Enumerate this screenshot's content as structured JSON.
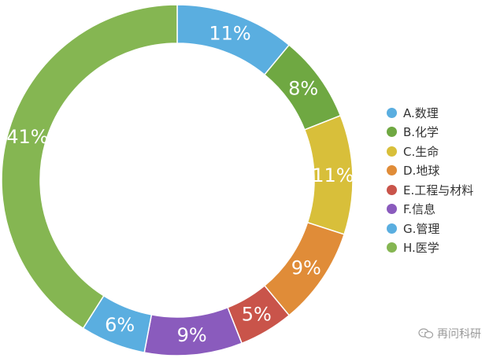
{
  "chart_data": {
    "type": "pie",
    "title": "",
    "start_angle_deg": 0,
    "direction": "clockwise",
    "legend_position": "right",
    "slices": [
      {
        "label": "A.数理",
        "value": 11,
        "value_label": "11%",
        "color": "#5aaee0"
      },
      {
        "label": "B.化学",
        "value": 8,
        "value_label": "8%",
        "color": "#6fa842"
      },
      {
        "label": "C.生命",
        "value": 11,
        "value_label": "11%",
        "color": "#d8bf3a"
      },
      {
        "label": "D.地球",
        "value": 9,
        "value_label": "9%",
        "color": "#e08c38"
      },
      {
        "label": "E.工程与材料",
        "value": 5,
        "value_label": "5%",
        "color": "#c9544a"
      },
      {
        "label": "F.信息",
        "value": 9,
        "value_label": "9%",
        "color": "#8a5bbd"
      },
      {
        "label": "G.管理",
        "value": 6,
        "value_label": "6%",
        "color": "#5aaee0"
      },
      {
        "label": "H.医学",
        "value": 41,
        "value_label": "41%",
        "color": "#85b652"
      }
    ]
  },
  "watermark": {
    "text": "再问科研",
    "icon": "chat-bubbles-icon"
  }
}
